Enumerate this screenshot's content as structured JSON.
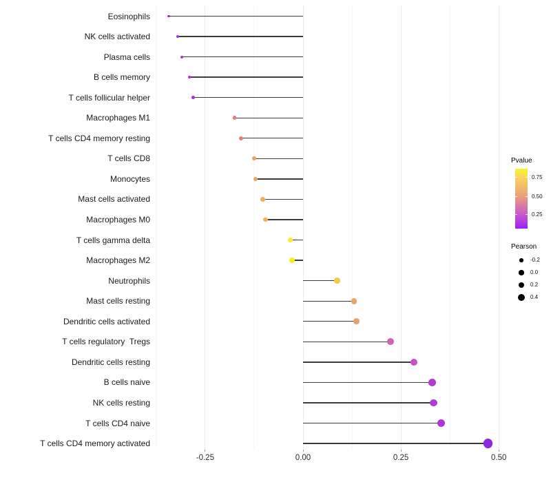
{
  "chart_data": {
    "type": "lollipop",
    "orientation": "horizontal",
    "title": "",
    "xlabel": "",
    "ylabel": "",
    "grid": "vertical-only",
    "x_ticks": [
      -0.25,
      0.0,
      0.25,
      0.5
    ],
    "x_tick_labels": [
      "-0.25",
      "0.00",
      "0.25",
      "0.50"
    ],
    "x_minor_ticks": [
      -0.375,
      -0.125,
      0.125,
      0.375
    ],
    "xlim": [
      -0.39,
      0.52
    ],
    "points": [
      {
        "label": "Eosinophils",
        "pearson": -0.343,
        "color": "#9E30C5"
      },
      {
        "label": "NK cells activated",
        "pearson": -0.32,
        "color": "#A537C7"
      },
      {
        "label": "Plasma cells",
        "pearson": -0.31,
        "color": "#A83BC6"
      },
      {
        "label": "B cells memory",
        "pearson": -0.29,
        "color": "#A93CC7"
      },
      {
        "label": "T cells follicular helper",
        "pearson": -0.281,
        "color": "#AA3EC7"
      },
      {
        "label": "Macrophages M1",
        "pearson": -0.175,
        "color": "#D98177"
      },
      {
        "label": "T cells CD4 memory resting",
        "pearson": -0.158,
        "color": "#DA8673"
      },
      {
        "label": "T cells CD8",
        "pearson": -0.125,
        "color": "#EBA25E"
      },
      {
        "label": "Monocytes",
        "pearson": -0.121,
        "color": "#EBA55C"
      },
      {
        "label": "Mast cells activated",
        "pearson": -0.103,
        "color": "#EDB25A"
      },
      {
        "label": "Macrophages M0",
        "pearson": -0.096,
        "color": "#EDB557"
      },
      {
        "label": "T cells gamma delta",
        "pearson": -0.032,
        "color": "#F5EC2A"
      },
      {
        "label": "Macrophages M2",
        "pearson": -0.028,
        "color": "#F5EE26"
      },
      {
        "label": "Neutrophils",
        "pearson": 0.087,
        "color": "#EFCB52"
      },
      {
        "label": "Mast cells resting",
        "pearson": 0.13,
        "color": "#E7A56A"
      },
      {
        "label": "Dendritic cells activated",
        "pearson": 0.136,
        "color": "#E6A26E"
      },
      {
        "label": "T cells regulatory  Tregs",
        "pearson": 0.223,
        "color": "#C967B1"
      },
      {
        "label": "Dendritic cells resting",
        "pearson": 0.283,
        "color": "#C452C6"
      },
      {
        "label": "B cells naive",
        "pearson": 0.33,
        "color": "#B13ED1"
      },
      {
        "label": "NK cells resting",
        "pearson": 0.334,
        "color": "#B03CD2"
      },
      {
        "label": "T cells CD4 naive",
        "pearson": 0.352,
        "color": "#AD36D5"
      },
      {
        "label": "T cells CD4 memory activated",
        "pearson": 0.472,
        "color": "#9027E0"
      }
    ],
    "legend_pvalue": {
      "title": "Pvalue",
      "tick_labels": [
        "0.75",
        "0.50",
        "0.25"
      ],
      "tick_fracs_from_top": [
        0.149,
        0.471,
        0.77
      ],
      "gradient_stops": [
        {
          "pos": 0.0,
          "color": "#FAF22B"
        },
        {
          "pos": 0.15,
          "color": "#F8D45E"
        },
        {
          "pos": 0.47,
          "color": "#E89D7C"
        },
        {
          "pos": 0.77,
          "color": "#C757CE"
        },
        {
          "pos": 1.0,
          "color": "#9E21F2"
        }
      ]
    },
    "legend_pearson": {
      "title": "Pearson",
      "items": [
        {
          "label": "-0.2",
          "value": -0.2
        },
        {
          "label": "0.0",
          "value": 0.0
        },
        {
          "label": "0.2",
          "value": 0.2
        },
        {
          "label": "0.4",
          "value": 0.4
        }
      ]
    },
    "colors": {
      "segment": "#3A3A3A",
      "grid_major": "#ECECEC",
      "grid_minor": "#F5F5F5",
      "axis_text": "#1A1A1A",
      "legend_dot": "#000000",
      "background": "#FFFFFF"
    }
  }
}
